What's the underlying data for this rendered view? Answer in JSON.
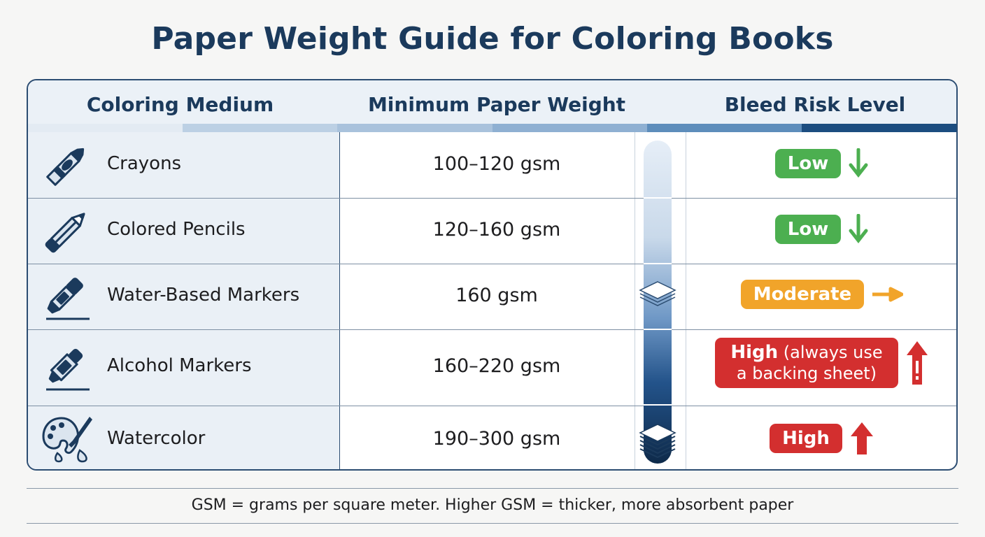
{
  "title": "Paper Weight Guide for Coloring Books",
  "headers": {
    "medium": "Coloring Medium",
    "weight": "Minimum Paper Weight",
    "risk": "Bleed Risk Level"
  },
  "rows": [
    {
      "medium": "Crayons",
      "icon": "crayon-icon",
      "weight": "100–120 gsm",
      "risk": "Low",
      "risk_level": "low",
      "arrow": "down-arrow-icon"
    },
    {
      "medium": "Colored Pencils",
      "icon": "pencil-icon",
      "weight": "120–160 gsm",
      "risk": "Low",
      "risk_level": "low",
      "arrow": "down-arrow-icon"
    },
    {
      "medium": "Water-Based Markers",
      "icon": "marker-icon",
      "weight": "160 gsm",
      "risk": "Moderate",
      "risk_level": "moderate",
      "arrow": "right-arrow-icon"
    },
    {
      "medium": "Alcohol Markers",
      "icon": "alcohol-marker-icon",
      "weight": "160–220 gsm",
      "risk_bold": "High",
      "risk_rest_1": "(always use",
      "risk_rest_2": "a backing sheet)",
      "risk_level": "high",
      "arrow": "warning-up-arrow-icon"
    },
    {
      "medium": "Watercolor",
      "icon": "watercolor-palette-icon",
      "weight": "190–300 gsm",
      "risk": "High",
      "risk_level": "high",
      "arrow": "up-arrow-icon"
    }
  ],
  "footnote": "GSM = grams per square meter. Higher GSM = thicker, more absorbent paper",
  "colors": {
    "navy": "#1b3a5c",
    "low": "#4caf50",
    "moderate": "#f1a42a",
    "high": "#d32f2f"
  }
}
